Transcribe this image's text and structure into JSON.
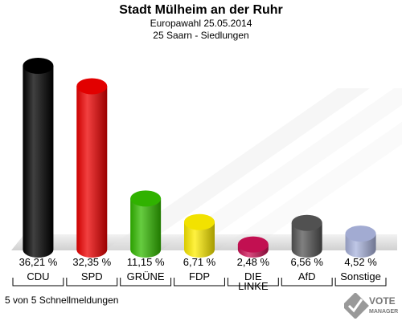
{
  "header": {
    "title": "Stadt Mülheim an der Ruhr",
    "subtitle1": "Europawahl 25.05.2014",
    "subtitle2": "25 Saarn - Siedlungen"
  },
  "footer": {
    "status": "5 von 5 Schnellmeldungen"
  },
  "logo": {
    "line1": "VOTE",
    "line2": "MANAGER"
  },
  "chart_data": {
    "type": "bar",
    "categories": [
      "CDU",
      "SPD",
      "GRÜNE",
      "FDP",
      "DIE LINKE",
      "AfD",
      "Sonstige"
    ],
    "values": [
      36.21,
      32.35,
      11.15,
      6.71,
      2.48,
      6.56,
      4.52
    ],
    "value_labels": [
      "36,21 %",
      "32,35 %",
      "11,15 %",
      "6,71 %",
      "2,48 %",
      "6,56 %",
      "4,52 %"
    ],
    "colors": [
      "#000000",
      "#ee0000",
      "#33bb00",
      "#ffee00",
      "#cc1155",
      "#555555",
      "#aab4dd"
    ],
    "ylim": [
      0,
      40
    ],
    "grid": false,
    "legend": "none"
  }
}
